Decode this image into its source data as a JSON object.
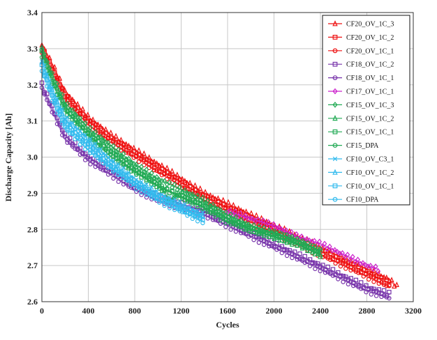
{
  "chart_data": {
    "type": "scatter",
    "title": "",
    "xlabel": "Cycles",
    "ylabel": "Discharge Capacity [Ah]",
    "xlim": [
      0,
      3200
    ],
    "ylim": [
      2.6,
      3.4
    ],
    "xticks": [
      0,
      400,
      800,
      1200,
      1600,
      2000,
      2400,
      2800,
      3200
    ],
    "yticks": [
      2.6,
      2.7,
      2.8,
      2.9,
      3.0,
      3.1,
      3.2,
      3.3,
      3.4
    ],
    "grid": true,
    "legend_position": "top-right",
    "series": [
      {
        "name": "CF20_OV_1C_3",
        "color": "#ee1111",
        "marker": "triangle",
        "x": [
          0,
          100,
          200,
          400,
          600,
          800,
          1000,
          1200,
          1400,
          1600,
          1800,
          2000,
          2200,
          2400,
          2600,
          2800,
          3000,
          3060
        ],
        "y": [
          3.31,
          3.25,
          3.18,
          3.11,
          3.06,
          3.02,
          2.98,
          2.94,
          2.9,
          2.87,
          2.84,
          2.81,
          2.78,
          2.75,
          2.72,
          2.69,
          2.66,
          2.64
        ]
      },
      {
        "name": "CF20_OV_1C_2",
        "color": "#ee1111",
        "marker": "square",
        "x": [
          0,
          100,
          200,
          400,
          600,
          800,
          1000,
          1200,
          1400,
          1600,
          1800,
          2000,
          2200,
          2400,
          2600,
          2800,
          3000
        ],
        "y": [
          3.3,
          3.24,
          3.17,
          3.1,
          3.05,
          3.01,
          2.97,
          2.93,
          2.89,
          2.86,
          2.83,
          2.8,
          2.77,
          2.74,
          2.71,
          2.68,
          2.65
        ]
      },
      {
        "name": "CF20_OV_1C_1",
        "color": "#ee1111",
        "marker": "circle",
        "x": [
          0,
          100,
          200,
          400,
          600,
          800,
          1000,
          1200,
          1400,
          1600,
          1800,
          2000,
          2200,
          2400,
          2600,
          2800,
          3000
        ],
        "y": [
          3.29,
          3.23,
          3.16,
          3.09,
          3.04,
          3.0,
          2.96,
          2.92,
          2.88,
          2.85,
          2.82,
          2.79,
          2.76,
          2.73,
          2.7,
          2.67,
          2.64
        ]
      },
      {
        "name": "CF18_OV_1C_2",
        "color": "#7733aa",
        "marker": "square",
        "x": [
          0,
          100,
          200,
          400,
          600,
          800,
          1000,
          1200,
          1400,
          1600,
          1800,
          2000,
          2200,
          2400,
          2600,
          2800,
          3000
        ],
        "y": [
          3.2,
          3.13,
          3.06,
          3.0,
          2.96,
          2.92,
          2.89,
          2.87,
          2.85,
          2.82,
          2.79,
          2.76,
          2.73,
          2.7,
          2.67,
          2.64,
          2.62
        ]
      },
      {
        "name": "CF18_OV_1C_1",
        "color": "#7733aa",
        "marker": "circle",
        "x": [
          0,
          100,
          200,
          400,
          600,
          800,
          1000,
          1200,
          1400,
          1600,
          1800,
          2000,
          2200,
          2400,
          2600,
          2800,
          3000
        ],
        "y": [
          3.19,
          3.12,
          3.05,
          2.99,
          2.95,
          2.91,
          2.88,
          2.86,
          2.84,
          2.81,
          2.78,
          2.75,
          2.72,
          2.69,
          2.66,
          2.63,
          2.61
        ]
      },
      {
        "name": "CF17_OV_1C_1",
        "color": "#cc22cc",
        "marker": "diamond",
        "x": [
          1600,
          1800,
          2000,
          2200,
          2400,
          2600,
          2800,
          2900
        ],
        "y": [
          2.85,
          2.83,
          2.81,
          2.78,
          2.76,
          2.73,
          2.7,
          2.69
        ]
      },
      {
        "name": "CF15_OV_1C_3",
        "color": "#22aa55",
        "marker": "diamond",
        "x": [
          0,
          100,
          200,
          400,
          600,
          800,
          1000,
          1200,
          1400,
          1600,
          1800,
          2000,
          2200,
          2400
        ],
        "y": [
          3.3,
          3.22,
          3.15,
          3.08,
          3.03,
          2.98,
          2.94,
          2.91,
          2.88,
          2.84,
          2.81,
          2.79,
          2.77,
          2.74
        ]
      },
      {
        "name": "CF15_OV_1C_2",
        "color": "#22aa55",
        "marker": "triangle",
        "x": [
          0,
          100,
          200,
          400,
          600,
          800,
          1000,
          1100,
          1200,
          1400,
          1600,
          1800,
          2000,
          2200,
          2400
        ],
        "y": [
          3.3,
          3.21,
          3.14,
          3.07,
          3.02,
          2.97,
          2.93,
          2.88,
          2.9,
          2.87,
          2.83,
          2.8,
          2.78,
          2.76,
          2.73
        ]
      },
      {
        "name": "CF15_OV_1C_1",
        "color": "#22aa55",
        "marker": "square",
        "x": [
          0,
          100,
          200,
          400,
          600,
          800,
          1000,
          1200,
          1400,
          1600,
          1800,
          2000,
          2200,
          2400
        ],
        "y": [
          3.29,
          3.2,
          3.13,
          3.06,
          3.01,
          2.96,
          2.92,
          2.89,
          2.86,
          2.83,
          2.8,
          2.78,
          2.76,
          2.73
        ]
      },
      {
        "name": "CF15_DPA",
        "color": "#22aa55",
        "marker": "circle",
        "x": [
          0,
          100,
          200,
          400,
          600,
          800,
          1000,
          1200,
          1400,
          1600,
          1800,
          2000,
          2200,
          2400
        ],
        "y": [
          3.28,
          3.2,
          3.13,
          3.06,
          3.0,
          2.96,
          2.92,
          2.89,
          2.86,
          2.82,
          2.8,
          2.79,
          2.77,
          2.74
        ]
      },
      {
        "name": "CF10_OV_C3_1",
        "color": "#33bbee",
        "marker": "cross",
        "x": [
          0,
          100,
          200,
          400,
          600,
          800,
          1000,
          1200,
          1400
        ],
        "y": [
          3.27,
          3.18,
          3.11,
          3.05,
          2.99,
          2.94,
          2.9,
          2.87,
          2.84
        ]
      },
      {
        "name": "CF10_OV_1C_2",
        "color": "#33bbee",
        "marker": "triangle",
        "x": [
          0,
          100,
          200,
          400,
          600,
          800,
          1000,
          1200,
          1400
        ],
        "y": [
          3.26,
          3.17,
          3.1,
          3.04,
          2.98,
          2.93,
          2.89,
          2.86,
          2.83
        ]
      },
      {
        "name": "CF10_OV_1C_1",
        "color": "#33bbee",
        "marker": "square",
        "x": [
          0,
          100,
          200,
          400,
          600,
          800,
          1000,
          1200,
          1400
        ],
        "y": [
          3.25,
          3.16,
          3.09,
          3.03,
          2.97,
          2.93,
          2.89,
          2.86,
          2.83
        ]
      },
      {
        "name": "CF10_DPA",
        "color": "#33bbee",
        "marker": "circle",
        "x": [
          0,
          100,
          200,
          400,
          600,
          800,
          1000,
          1200,
          1400
        ],
        "y": [
          3.24,
          3.15,
          3.08,
          3.02,
          2.97,
          2.92,
          2.88,
          2.85,
          2.82
        ]
      }
    ]
  }
}
